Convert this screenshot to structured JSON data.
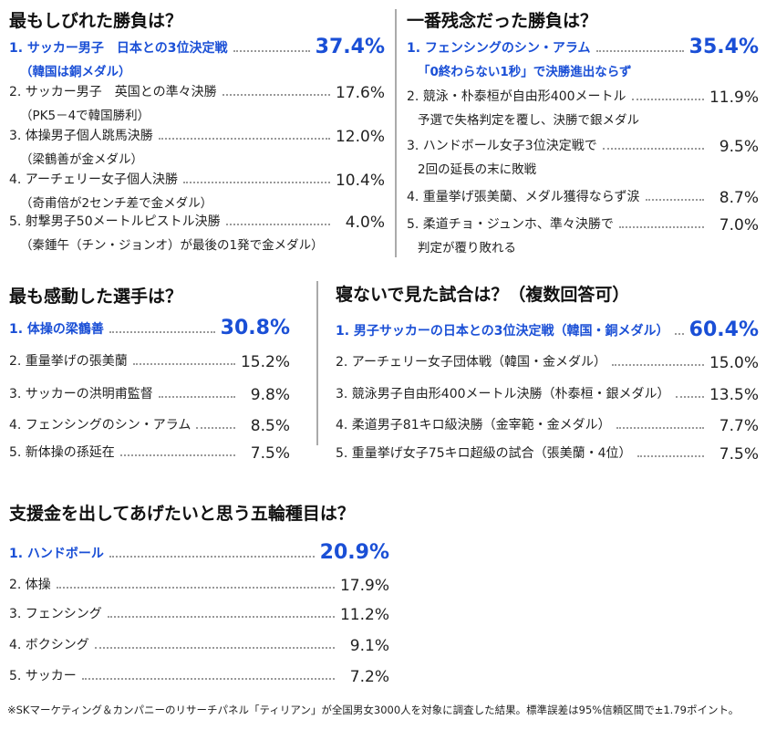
{
  "sections": [
    {
      "title": "最もしびれた勝負は？",
      "items": [
        {
          "label": "1. サッカー男子　日本との3位決定戦",
          "sub": "（韓国は銅メダル）",
          "value": "37.4%"
        },
        {
          "label": "2. サッカー男子　英国との準々決勝",
          "sub": "（PK5－4で韓国勝利）",
          "value": "17.6%"
        },
        {
          "label": "3. 体操男子個人跳馬決勝",
          "sub": "（梁鶴善が金メダル）",
          "value": "12.0%"
        },
        {
          "label": "4. アーチェリー女子個人決勝",
          "sub": "（奇甫倍が2センチ差で金メダル）",
          "value": "10.4%"
        },
        {
          "label": "5. 射撃男子50メートルピストル決勝",
          "sub": "（秦鍾午（チン・ジョンオ）が最後の1発で金メダル）",
          "value": "4.0%"
        }
      ]
    },
    {
      "title": "一番残念だった勝負は？",
      "items": [
        {
          "label": "1. フェンシングのシン・アラム",
          "sub": "「0終わらない1秒」で決勝進出ならず",
          "value": "35.4%"
        },
        {
          "label": "2. 競泳・朴泰桓が自由形400メートル",
          "sub": "予選で失格判定を覆し、決勝で銀メダル",
          "value": "11.9%"
        },
        {
          "label": "3. ハンドボール女子3位決定戦で",
          "sub": "2回の延長の末に敗戦",
          "value": "9.5%"
        },
        {
          "label": "4. 重量挙げ張美蘭、メダル獲得ならず涙",
          "value": "8.7%"
        },
        {
          "label": "5. 柔道チョ・ジュンホ、準々決勝で",
          "sub": "判定が覆り敗れる",
          "value": "7.0%"
        }
      ]
    },
    {
      "title": "最も感動した選手は？",
      "items": [
        {
          "label": "1. 体操の梁鶴善",
          "value": "30.8%"
        },
        {
          "label": "2. 重量挙げの張美蘭",
          "value": "15.2%"
        },
        {
          "label": "3. サッカーの洪明甫監督",
          "value": "9.8%"
        },
        {
          "label": "4. フェンシングのシン・アラム",
          "value": "8.5%"
        },
        {
          "label": "5. 新体操の孫延在",
          "value": "7.5%"
        }
      ]
    },
    {
      "title": "寝ないで見た試合は？（複数回答可）",
      "items": [
        {
          "label": "1. 男子サッカーの日本との3位決定戦（韓国・銅メダル）",
          "value": "60.4%"
        },
        {
          "label": "2. アーチェリー女子団体戦（韓国・金メダル）",
          "value": "15.0%"
        },
        {
          "label": "3. 競泳男子自由形400メートル決勝（朴泰桓・銀メダル）",
          "value": "13.5%"
        },
        {
          "label": "4. 柔道男子81キロ級決勝（金宰範・金メダル）",
          "value": "7.7%"
        },
        {
          "label": "5. 重量挙げ女子75キロ超級の試合（張美蘭・4位）",
          "value": "7.5%"
        }
      ]
    },
    {
      "title": "支援金を出してあげたいと思う五輪種目は？",
      "items": [
        {
          "label": "1. ハンドボール",
          "value": "20.9%"
        },
        {
          "label": "2. 体操",
          "value": "17.9%"
        },
        {
          "label": "3. フェンシング",
          "value": "11.2%"
        },
        {
          "label": "4. ボクシング",
          "value": "9.1%"
        },
        {
          "label": "5. サッカー",
          "value": "7.2%"
        }
      ]
    }
  ],
  "footnote": "※SKマーケティング＆カンパニーのリサーチパネル「ティリアン」が全国男女3000人を対象に調査した結果。標準誤差は95%信頼区間で±1.79ポイント。"
}
